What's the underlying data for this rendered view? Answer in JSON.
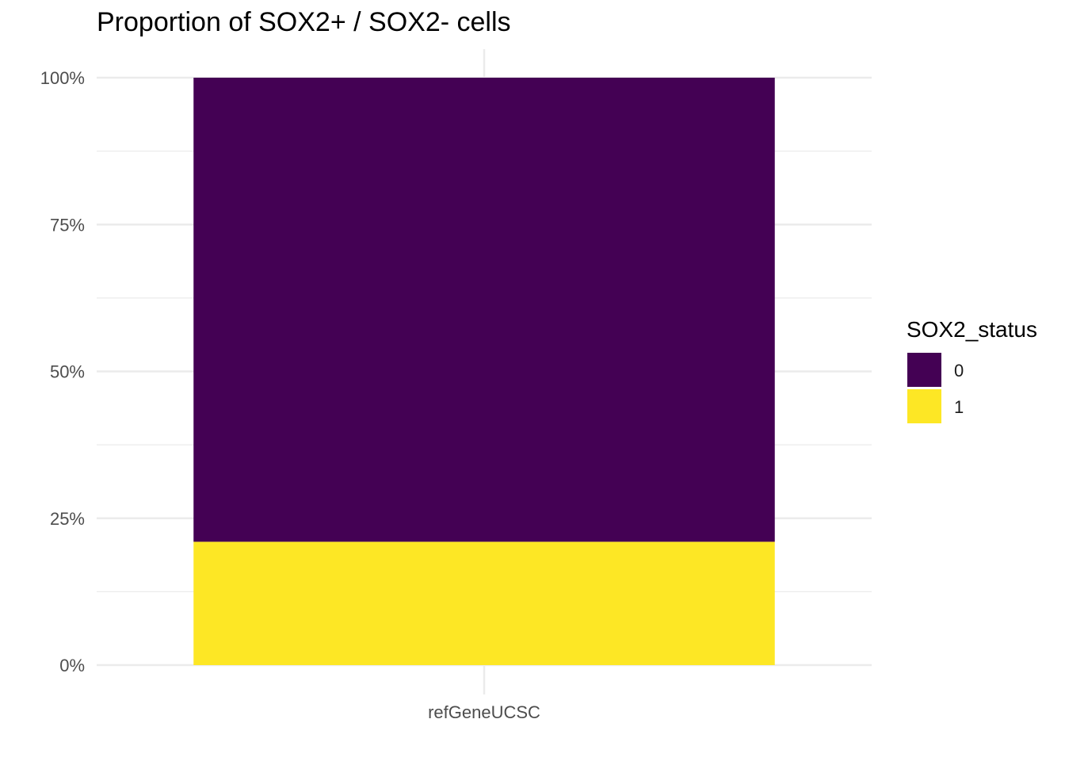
{
  "chart_data": {
    "type": "bar",
    "stacked": true,
    "percent": true,
    "title": "Proportion of SOX2+ / SOX2- cells",
    "xlabel": "",
    "ylabel": "",
    "categories": [
      "refGeneUCSC"
    ],
    "series": [
      {
        "name": "0",
        "values": [
          0.79
        ],
        "color": "#440154"
      },
      {
        "name": "1",
        "values": [
          0.21
        ],
        "color": "#FDE725"
      }
    ],
    "ylim": [
      0,
      1
    ],
    "yticks": [
      "0%",
      "25%",
      "50%",
      "75%",
      "100%"
    ],
    "legend": {
      "title": "SOX2_status",
      "position": "right"
    },
    "grid": true
  }
}
